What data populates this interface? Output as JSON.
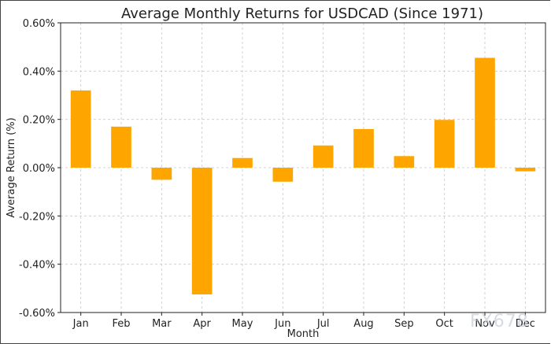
{
  "chart_data": {
    "type": "bar",
    "title": "Average Monthly Returns for USDCAD (Since 1971)",
    "xlabel": "Month",
    "ylabel": "Average Return (%)",
    "categories": [
      "Jan",
      "Feb",
      "Mar",
      "Apr",
      "May",
      "Jun",
      "Jul",
      "Aug",
      "Sep",
      "Oct",
      "Nov",
      "Dec"
    ],
    "values": [
      0.32,
      0.17,
      -0.05,
      -0.525,
      0.04,
      -0.058,
      0.092,
      0.16,
      0.048,
      0.198,
      0.455,
      -0.015
    ],
    "ylim": [
      -0.6,
      0.6
    ],
    "yticks": [
      0.6,
      0.4,
      0.2,
      0.0,
      -0.2,
      -0.4,
      -0.6
    ],
    "ytick_labels": [
      "0.60%",
      "0.40%",
      "0.20%",
      "0.00%",
      "-0.20%",
      "-0.40%",
      "-0.60%"
    ],
    "grid": true,
    "bar_color": "#FFA500"
  },
  "watermark": "FX678"
}
